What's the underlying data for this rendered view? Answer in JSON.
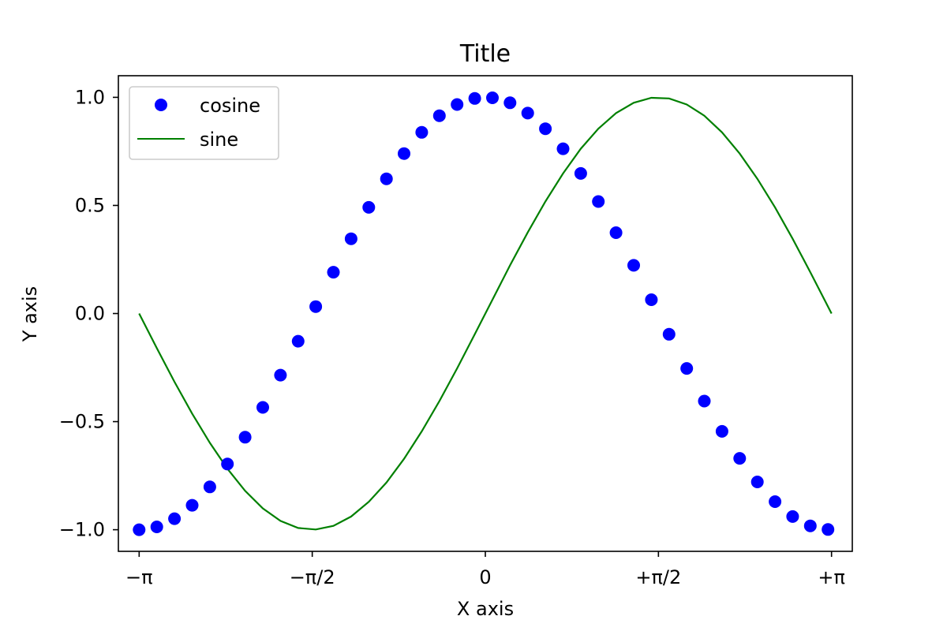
{
  "chart_data": {
    "type": "line",
    "title": "Title",
    "xlabel": "X axis",
    "ylabel": "Y axis",
    "xlim": [
      -3.3301,
      3.3301
    ],
    "ylim": [
      -1.1,
      1.1
    ],
    "grid": false,
    "legend_position": "top-left",
    "x_ticks": [
      {
        "value": -3.14159,
        "label": "−π"
      },
      {
        "value": -1.5708,
        "label": "−π/2"
      },
      {
        "value": 0,
        "label": "0"
      },
      {
        "value": 1.5708,
        "label": "+π/2"
      },
      {
        "value": 3.14159,
        "label": "+π"
      }
    ],
    "y_ticks": [
      {
        "value": -1.0,
        "label": "−1.0"
      },
      {
        "value": -0.5,
        "label": "−0.5"
      },
      {
        "value": 0.0,
        "label": "0.0"
      },
      {
        "value": 0.5,
        "label": "0.5"
      },
      {
        "value": 1.0,
        "label": "1.0"
      }
    ],
    "series": [
      {
        "name": "cosine",
        "style": "markers",
        "color": "#0000ff",
        "x": [
          -3.1416,
          -2.9813,
          -2.821,
          -2.6607,
          -2.5004,
          -2.3402,
          -2.1799,
          -2.0196,
          -1.8593,
          -1.699,
          -1.5387,
          -1.3785,
          -1.2182,
          -1.0579,
          -0.8976,
          -0.7373,
          -0.577,
          -0.4167,
          -0.2565,
          -0.0962,
          0.0641,
          0.2244,
          0.3847,
          0.545,
          0.7053,
          0.8655,
          1.0258,
          1.1861,
          1.3464,
          1.5067,
          1.667,
          1.8273,
          1.9875,
          2.1478,
          2.3081,
          2.4684,
          2.6287,
          2.789,
          2.9493,
          3.1096
        ],
        "values": [
          -1.0,
          -0.987,
          -0.949,
          -0.887,
          -0.802,
          -0.696,
          -0.572,
          -0.434,
          -0.285,
          -0.128,
          0.032,
          0.191,
          0.346,
          0.491,
          0.623,
          0.74,
          0.838,
          0.915,
          0.967,
          0.995,
          0.998,
          0.975,
          0.927,
          0.855,
          0.762,
          0.648,
          0.518,
          0.374,
          0.223,
          0.064,
          -0.096,
          -0.254,
          -0.405,
          -0.545,
          -0.67,
          -0.779,
          -0.87,
          -0.939,
          -0.982,
          -0.999
        ]
      },
      {
        "name": "sine",
        "style": "line",
        "color": "#008000",
        "x": [
          -3.1416,
          -2.9813,
          -2.821,
          -2.6607,
          -2.5004,
          -2.3402,
          -2.1799,
          -2.0196,
          -1.8593,
          -1.699,
          -1.5387,
          -1.3785,
          -1.2182,
          -1.0579,
          -0.8976,
          -0.7373,
          -0.577,
          -0.4167,
          -0.2565,
          -0.0962,
          0.0641,
          0.2244,
          0.3847,
          0.545,
          0.7053,
          0.8655,
          1.0258,
          1.1861,
          1.3464,
          1.5067,
          1.667,
          1.8273,
          1.9875,
          2.1478,
          2.3081,
          2.4684,
          2.6287,
          2.789,
          2.9493,
          3.1096,
          3.1416
        ],
        "values": [
          0.0,
          -0.16,
          -0.316,
          -0.463,
          -0.598,
          -0.718,
          -0.82,
          -0.901,
          -0.959,
          -0.992,
          -0.999,
          -0.982,
          -0.939,
          -0.871,
          -0.782,
          -0.672,
          -0.545,
          -0.405,
          -0.254,
          -0.096,
          0.064,
          0.223,
          0.375,
          0.518,
          0.648,
          0.762,
          0.855,
          0.927,
          0.975,
          0.998,
          0.995,
          0.967,
          0.915,
          0.838,
          0.74,
          0.623,
          0.491,
          0.346,
          0.191,
          0.032,
          0.0
        ]
      }
    ]
  }
}
